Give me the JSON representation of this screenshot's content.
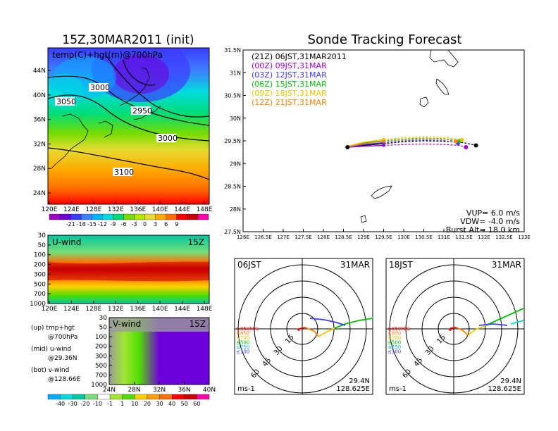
{
  "colors": {
    "cb1": [
      "#a000c8",
      "#6e00dc",
      "#3c3cff",
      "#3c82ff",
      "#00b4ff",
      "#00dcdc",
      "#00dc78",
      "#78dc00",
      "#b4e600",
      "#e6dc32",
      "#ffaa00",
      "#ff6e00",
      "#ff0000",
      "#c80000",
      "#ff00aa"
    ],
    "cb2": [
      "#00aaff",
      "#00dcdc",
      "#00c8a0",
      "#78dc78",
      "#ffffff",
      "#a0e632",
      "#50dc00",
      "#ffd200",
      "#ffa000",
      "#ff6e00",
      "#ff0000",
      "#c80000",
      "#ff00aa"
    ],
    "tracks": [
      "#000000",
      "#a000c8",
      "#3c3cff",
      "#00c000",
      "#e6c800",
      "#ff8200"
    ]
  },
  "panels": {
    "temp": {
      "title": "15Z,30MAR2011 (init)",
      "label": "temp(C)+hgt(m)@700hPa",
      "contours": [
        "3000",
        "3050",
        "2950",
        "3000",
        "3100"
      ],
      "xticks": [
        "120E",
        "124E",
        "128E",
        "132E",
        "136E",
        "140E",
        "144E",
        "148E"
      ],
      "yticks": [
        "44N",
        "40N",
        "36N",
        "32N",
        "28N",
        "24N"
      ],
      "cb_labels": [
        "-21",
        "-18",
        "-15",
        "-12",
        "-9",
        "-6",
        "-3",
        "0",
        "3",
        "6",
        "9"
      ]
    },
    "uwind": {
      "label": "U-wind",
      "time": "15Z",
      "xticks": [
        "120E",
        "124E",
        "128E",
        "132E",
        "136E",
        "140E",
        "144E",
        "148E"
      ],
      "yticks": [
        "30",
        "50",
        "100",
        "200",
        "300",
        "500",
        "700",
        "1000"
      ]
    },
    "vwind": {
      "label": "V-wind",
      "time": "15Z",
      "xticks": [
        "24N",
        "28N",
        "32N",
        "36N",
        "40N"
      ],
      "yticks": [
        "30",
        "50",
        "100",
        "200",
        "300",
        "500",
        "700",
        "1000"
      ],
      "cb_labels": [
        "-40",
        "-30",
        "-20",
        "-10",
        "-1",
        "1",
        "10",
        "20",
        "30",
        "40",
        "50",
        "60"
      ]
    },
    "legend_left": {
      "up1": "(up) tmp+hgt",
      "up2": "@700hPa",
      "mid1": "(mid) u-wind",
      "mid2": "@29.36N",
      "bot1": "(bot) v-wind",
      "bot2": "@128.66E"
    },
    "track": {
      "title": "Sonde Tracking Forecast",
      "xticks": [
        "126E",
        "126.5E",
        "127E",
        "127.5E",
        "128E",
        "128.5E",
        "129E",
        "129.5E",
        "130E",
        "130.5E",
        "131E",
        "131.5E",
        "132E",
        "132.5E",
        "133E"
      ],
      "yticks": [
        "31.5N",
        "31N",
        "30.5N",
        "30N",
        "29.5N",
        "29N",
        "28.5N",
        "28N",
        "27.5N"
      ],
      "legend": [
        "(21Z) 06JST,31MAR2011",
        "(00Z) 09JST,31MAR",
        "(03Z) 12JST,31MAR",
        "(06Z) 15JST,31MAR",
        "(09Z) 18JST,31MAR",
        "(12Z) 21JST,31MAR"
      ],
      "vup": "VUP= 6.0 m/s",
      "vdw": "VDW= -4.0 m/s",
      "burst": "Burst Alt= 18.0 km"
    },
    "hodo1": {
      "time": "06JST",
      "date": "31MAR",
      "rings": [
        "15",
        "30",
        "45",
        "60"
      ],
      "levels": [
        "≥850hPa",
        "≤850",
        "≤700",
        "≤500",
        "≤250",
        "≤100"
      ],
      "units": "ms-1",
      "lat": "29.4N",
      "lon": "128.625E"
    },
    "hodo2": {
      "time": "18JST",
      "date": "31MAR",
      "rings": [
        "15",
        "30",
        "45",
        "60"
      ],
      "levels": [
        "≥850hPa",
        "≤850",
        "≤700",
        "≤500",
        "≤250",
        "≤100"
      ],
      "units": "ms-1",
      "lat": "29.4N",
      "lon": "128.625E"
    }
  },
  "chart_data": [
    {
      "type": "heatmap",
      "title": "15Z,30MAR2011 (init)",
      "variable": "temp(C)+hgt(m)@700hPa",
      "xticks": [
        "120E",
        "124E",
        "128E",
        "132E",
        "136E",
        "140E",
        "144E",
        "148E"
      ],
      "yticks": [
        "24N",
        "28N",
        "32N",
        "36N",
        "40N",
        "44N"
      ],
      "colorbar": [
        -21,
        -18,
        -15,
        -12,
        -9,
        -6,
        -3,
        0,
        3,
        6,
        9
      ],
      "contour_labels": [
        3000,
        3050,
        2950,
        3000,
        3100
      ]
    },
    {
      "type": "heatmap",
      "variable": "U-wind",
      "time": "15Z",
      "xticks": [
        "120E",
        "124E",
        "128E",
        "132E",
        "136E",
        "140E",
        "144E",
        "148E"
      ],
      "yticks": [
        30,
        50,
        100,
        200,
        300,
        500,
        700,
        1000
      ]
    },
    {
      "type": "heatmap",
      "variable": "V-wind",
      "time": "15Z",
      "xticks": [
        "24N",
        "28N",
        "32N",
        "36N",
        "40N"
      ],
      "yticks": [
        30,
        50,
        100,
        200,
        300,
        500,
        700,
        1000
      ],
      "colorbar": [
        -40,
        -30,
        -20,
        -10,
        -1,
        1,
        10,
        20,
        30,
        40,
        50,
        60
      ]
    },
    {
      "type": "line",
      "title": "Sonde Tracking Forecast",
      "xlim": [
        126,
        133
      ],
      "ylim": [
        27.5,
        31.5
      ],
      "series": [
        {
          "name": "(21Z) 06JST,31MAR2011",
          "x": [
            128.6,
            129.0,
            129.5,
            130.0,
            130.5,
            131.0,
            131.5,
            131.8
          ],
          "y": [
            29.36,
            29.4,
            29.44,
            29.48,
            29.5,
            29.49,
            29.46,
            29.4
          ]
        },
        {
          "name": "(00Z) 09JST,31MAR",
          "x": [
            128.6,
            129.0,
            129.5,
            130.0,
            130.5,
            131.0,
            131.4,
            131.55
          ],
          "y": [
            29.36,
            29.38,
            29.4,
            29.42,
            29.43,
            29.42,
            29.4,
            29.36
          ]
        },
        {
          "name": "(03Z) 12JST,31MAR",
          "x": [
            128.6,
            129.0,
            129.5,
            130.0,
            130.5,
            131.0,
            131.35
          ],
          "y": [
            29.36,
            29.42,
            29.46,
            29.5,
            29.52,
            29.51,
            29.45
          ]
        },
        {
          "name": "(06Z) 15JST,31MAR",
          "x": [
            128.6,
            129.0,
            129.5,
            130.0,
            130.5,
            131.0,
            131.4
          ],
          "y": [
            29.37,
            29.45,
            29.5,
            29.54,
            29.56,
            29.55,
            29.5
          ]
        },
        {
          "name": "(09Z) 18JST,31MAR",
          "x": [
            128.6,
            129.0,
            129.5,
            130.0,
            130.5,
            131.0,
            131.45
          ],
          "y": [
            29.38,
            29.47,
            29.53,
            29.57,
            29.59,
            29.58,
            29.52
          ]
        },
        {
          "name": "(12Z) 21JST,31MAR",
          "x": [
            128.6,
            129.0,
            129.5,
            130.0,
            130.5,
            131.0,
            131.3
          ],
          "y": [
            29.37,
            29.44,
            29.49,
            29.52,
            29.55,
            29.54,
            29.49
          ]
        }
      ]
    }
  ]
}
